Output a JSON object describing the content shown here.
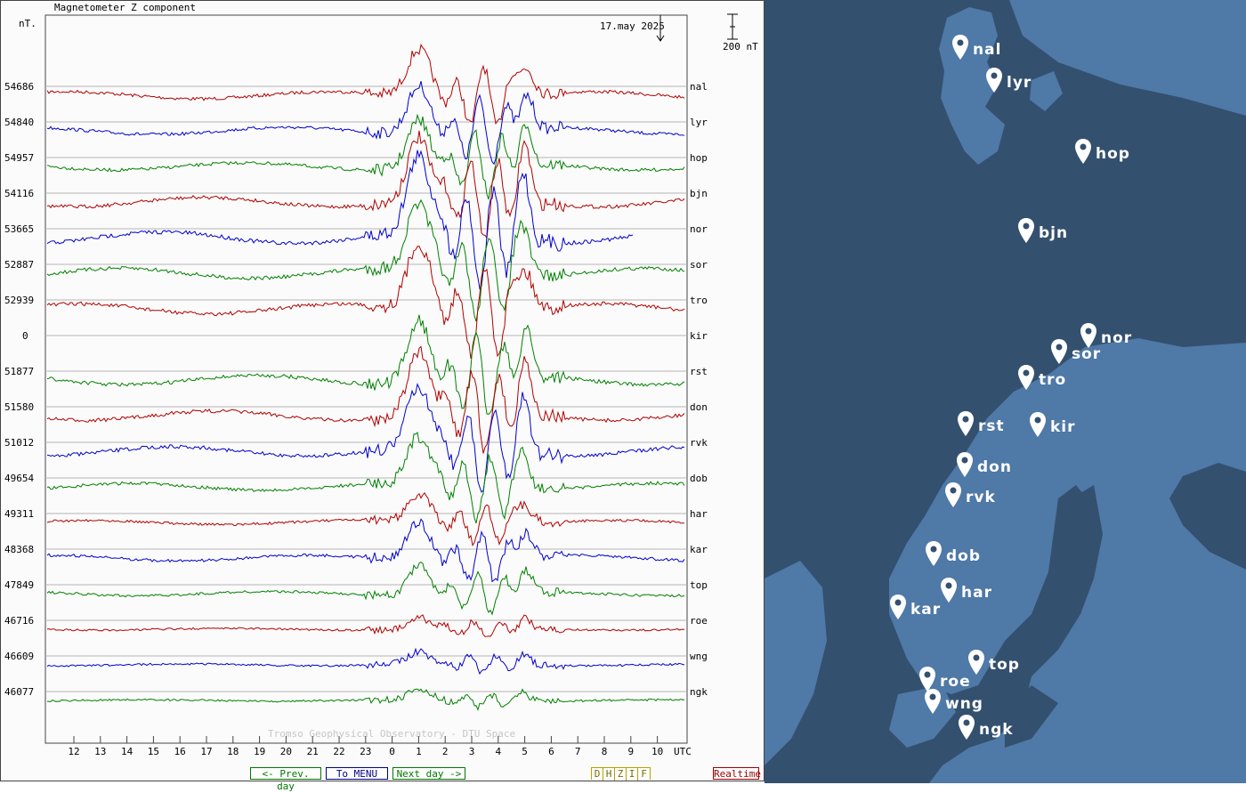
{
  "chart_data": {
    "type": "line",
    "title": "Magnetometer Z component",
    "ylabel": "nT.",
    "date_label": "17.may 2025",
    "scale_label": "200 nT",
    "credit": "Tromso Geophysical Observatory - DTU Space",
    "x_ticks": [
      "12",
      "13",
      "14",
      "15",
      "16",
      "17",
      "18",
      "19",
      "20",
      "21",
      "22",
      "23",
      "0",
      "1",
      "2",
      "3",
      "4",
      "5",
      "6",
      "7",
      "8",
      "9",
      "10"
    ],
    "x_unit": "UTC",
    "series": [
      {
        "name": "nal",
        "baseline": "54686",
        "color": "#b00000",
        "amp": 1.0
      },
      {
        "name": "lyr",
        "baseline": "54840",
        "color": "#0000cc",
        "amp": 1.0
      },
      {
        "name": "hop",
        "baseline": "54957",
        "color": "#008000",
        "amp": 1.0
      },
      {
        "name": "bjn",
        "baseline": "54116",
        "color": "#b00000",
        "amp": 1.3
      },
      {
        "name": "nor",
        "baseline": "53665",
        "color": "#0000cc",
        "amp": 1.6
      },
      {
        "name": "sor",
        "baseline": "52887",
        "color": "#008000",
        "amp": 1.4
      },
      {
        "name": "tro",
        "baseline": "52939",
        "color": "#b00000",
        "amp": 1.4
      },
      {
        "name": "kir",
        "baseline": "0",
        "color": "#008000",
        "amp": 0
      },
      {
        "name": "rst",
        "baseline": "51877",
        "color": "#008000",
        "amp": 1.3
      },
      {
        "name": "don",
        "baseline": "51580",
        "color": "#b00000",
        "amp": 1.3
      },
      {
        "name": "rvk",
        "baseline": "51012",
        "color": "#0000cc",
        "amp": 1.3
      },
      {
        "name": "dob",
        "baseline": "49654",
        "color": "#008000",
        "amp": 1.0
      },
      {
        "name": "har",
        "baseline": "49311",
        "color": "#b00000",
        "amp": 0.6
      },
      {
        "name": "kar",
        "baseline": "48368",
        "color": "#0000cc",
        "amp": 0.8
      },
      {
        "name": "top",
        "baseline": "47849",
        "color": "#008000",
        "amp": 0.6
      },
      {
        "name": "roe",
        "baseline": "46716",
        "color": "#b00000",
        "amp": 0.25
      },
      {
        "name": "wng",
        "baseline": "46609",
        "color": "#0000cc",
        "amp": 0.25
      },
      {
        "name": "ngk",
        "baseline": "46077",
        "color": "#008000",
        "amp": 0.2
      }
    ],
    "grid": true
  },
  "buttons": {
    "prev": "<- Prev. day",
    "menu": "To MENU",
    "next": "Next day ->",
    "components": [
      "D",
      "H",
      "Z",
      "I",
      "F"
    ],
    "realtime": "Realtime"
  },
  "map": {
    "stations": [
      "nal",
      "lyr",
      "hop",
      "bjn",
      "nor",
      "sor",
      "tro",
      "rst",
      "kir",
      "don",
      "rvk",
      "dob",
      "har",
      "kar",
      "top",
      "roe",
      "wng",
      "ngk"
    ],
    "colors": {
      "sea": "#34506f",
      "land": "#4f79a6",
      "marker": "#ffffff"
    }
  }
}
